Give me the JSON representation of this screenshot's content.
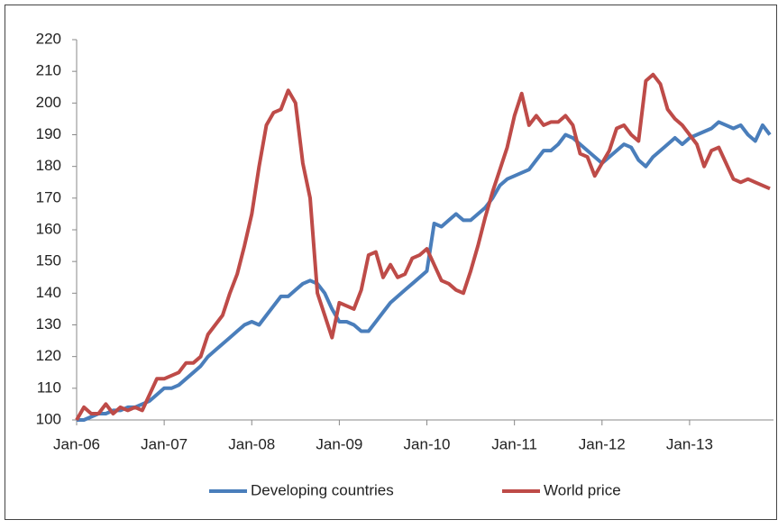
{
  "chart_data": {
    "type": "line",
    "categories": [
      "Jan-06",
      null,
      null,
      null,
      null,
      null,
      null,
      null,
      null,
      null,
      null,
      null,
      "Jan-07",
      null,
      null,
      null,
      null,
      null,
      null,
      null,
      null,
      null,
      null,
      null,
      "Jan-08",
      null,
      null,
      null,
      null,
      null,
      null,
      null,
      null,
      null,
      null,
      null,
      "Jan-09",
      null,
      null,
      null,
      null,
      null,
      null,
      null,
      null,
      null,
      null,
      null,
      "Jan-10",
      null,
      null,
      null,
      null,
      null,
      null,
      null,
      null,
      null,
      null,
      null,
      "Jan-11",
      null,
      null,
      null,
      null,
      null,
      null,
      null,
      null,
      null,
      null,
      null,
      "Jan-12",
      null,
      null,
      null,
      null,
      null,
      null,
      null,
      null,
      null,
      null,
      null,
      "Jan-13",
      null,
      null,
      null,
      null,
      null,
      null,
      null,
      null,
      null,
      null,
      null
    ],
    "series": [
      {
        "name": "Developing countries",
        "color": "#4a7ebb",
        "values": [
          100,
          100,
          101,
          102,
          102,
          103,
          103,
          104,
          104,
          105,
          106,
          108,
          110,
          110,
          111,
          113,
          115,
          117,
          120,
          122,
          124,
          126,
          128,
          130,
          131,
          130,
          133,
          136,
          139,
          139,
          141,
          143,
          144,
          143,
          140,
          135,
          131,
          131,
          130,
          128,
          128,
          131,
          134,
          137,
          139,
          141,
          143,
          145,
          147,
          162,
          161,
          163,
          165,
          163,
          163,
          165,
          167,
          170,
          174,
          176,
          177,
          178,
          179,
          182,
          185,
          185,
          187,
          190,
          189,
          187,
          185,
          183,
          181,
          183,
          185,
          187,
          186,
          182,
          180,
          183,
          185,
          187,
          189,
          187,
          189,
          190,
          191,
          192,
          194,
          193,
          192,
          193,
          190,
          188,
          193,
          190
        ]
      },
      {
        "name": "World price",
        "color": "#be4b48",
        "values": [
          100,
          104,
          102,
          102,
          105,
          102,
          104,
          103,
          104,
          103,
          108,
          113,
          113,
          114,
          115,
          118,
          118,
          120,
          127,
          130,
          133,
          140,
          146,
          155,
          165,
          180,
          193,
          197,
          198,
          204,
          200,
          181,
          170,
          140,
          133,
          126,
          137,
          136,
          135,
          141,
          152,
          153,
          145,
          149,
          145,
          146,
          151,
          152,
          154,
          149,
          144,
          143,
          141,
          140,
          147,
          155,
          164,
          172,
          179,
          186,
          196,
          203,
          193,
          196,
          193,
          194,
          194,
          196,
          193,
          184,
          183,
          177,
          181,
          185,
          192,
          193,
          190,
          188,
          207,
          209,
          206,
          198,
          195,
          193,
          190,
          187,
          180,
          185,
          186,
          181,
          176,
          175,
          176,
          175,
          174,
          173
        ]
      }
    ],
    "ylim": [
      100,
      220
    ],
    "yticks": [
      100,
      110,
      120,
      130,
      140,
      150,
      160,
      170,
      180,
      190,
      200,
      210,
      220
    ],
    "legend": "bottom"
  }
}
